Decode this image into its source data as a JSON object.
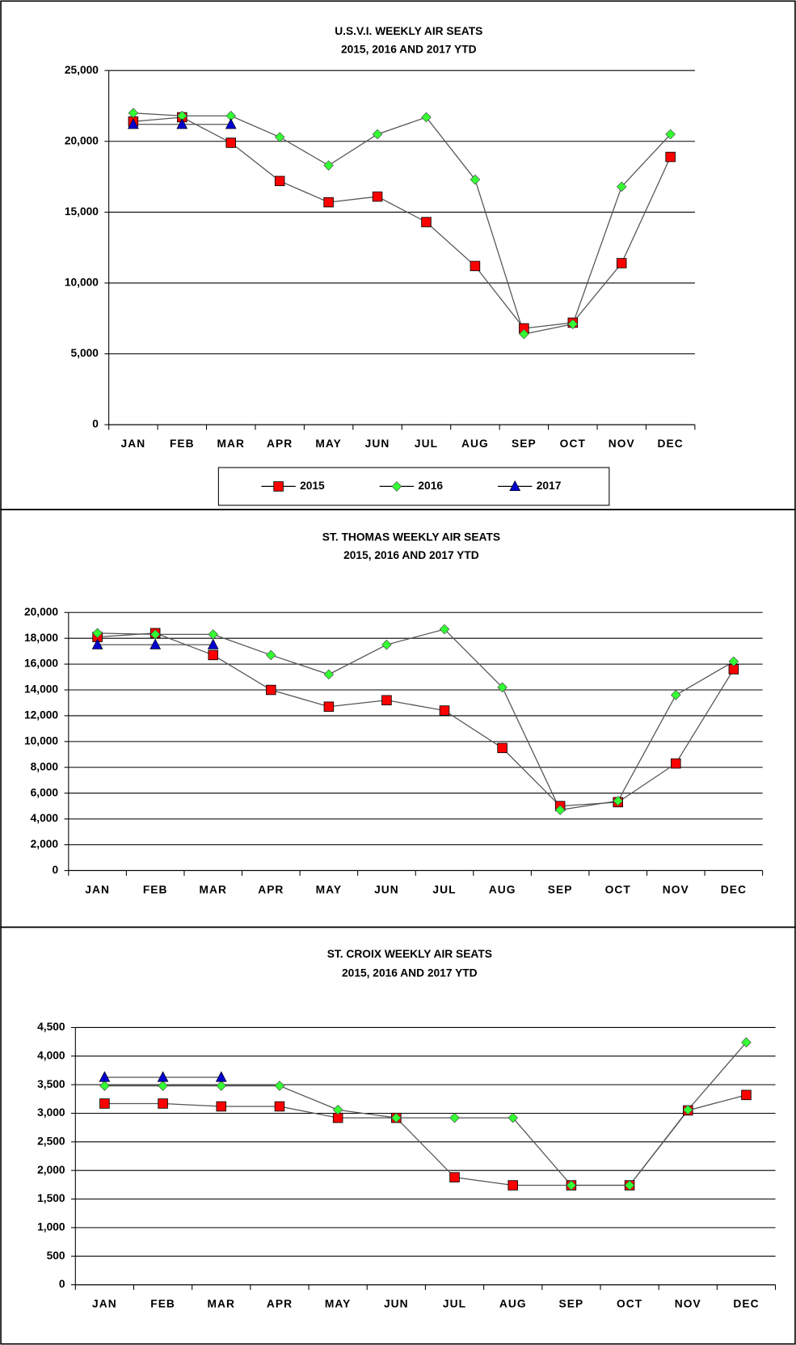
{
  "chart_data": [
    {
      "type": "line",
      "title": "U.S.V.I. WEEKLY  AIR SEATS",
      "subtitle": "2015, 2016 AND  2017 YTD",
      "categories": [
        "JAN",
        "FEB",
        "MAR",
        "APR",
        "MAY",
        "JUN",
        "JUL",
        "AUG",
        "SEP",
        "OCT",
        "NOV",
        "DEC"
      ],
      "ylim": [
        0,
        25000
      ],
      "yticks": [
        0,
        {
          "value": 5000,
          "label": "5,000"
        },
        {
          "value": 10000,
          "label": "10,000"
        },
        {
          "value": 15000,
          "label": "15,000"
        },
        {
          "value": 20000,
          "label": "20,000"
        },
        {
          "value": 25000,
          "label": "25,000"
        }
      ],
      "grid": true,
      "legend": "bottom",
      "series": [
        {
          "name": "2015",
          "color": "#ff0000",
          "marker": "square",
          "values": [
            21400,
            21700,
            19900,
            17200,
            15700,
            16100,
            14300,
            11200,
            6800,
            7200,
            11400,
            18900
          ]
        },
        {
          "name": "2016",
          "color": "#33ff33",
          "marker": "diamond",
          "values": [
            22000,
            21800,
            21800,
            20300,
            18300,
            20500,
            21700,
            17300,
            6400,
            7100,
            16800,
            20500
          ]
        },
        {
          "name": "2017",
          "color": "#0000cc",
          "marker": "triangle",
          "values": [
            21200,
            21200,
            21200,
            null,
            null,
            null,
            null,
            null,
            null,
            null,
            null,
            null
          ]
        }
      ]
    },
    {
      "type": "line",
      "title": "ST. THOMAS WEEKLY  AIR SEATS",
      "subtitle": "2015, 2016 AND  2017 YTD",
      "categories": [
        "JAN",
        "FEB",
        "MAR",
        "APR",
        "MAY",
        "JUN",
        "JUL",
        "AUG",
        "SEP",
        "OCT",
        "NOV",
        "DEC"
      ],
      "ylim": [
        0,
        20000
      ],
      "yticks": [
        0,
        {
          "value": 2000,
          "label": "2,000"
        },
        {
          "value": 4000,
          "label": "4,000"
        },
        {
          "value": 6000,
          "label": "6,000"
        },
        {
          "value": 8000,
          "label": "8,000"
        },
        {
          "value": 10000,
          "label": "10,000"
        },
        {
          "value": 12000,
          "label": "12,000"
        },
        {
          "value": 14000,
          "label": "14,000"
        },
        {
          "value": 16000,
          "label": "16,000"
        },
        {
          "value": 18000,
          "label": "18,000"
        },
        {
          "value": 20000,
          "label": "20,000"
        }
      ],
      "grid": true,
      "series": [
        {
          "name": "2015",
          "color": "#ff0000",
          "marker": "square",
          "values": [
            18100,
            18400,
            16700,
            14000,
            12700,
            13200,
            12400,
            9500,
            5000,
            5300,
            8300,
            15600
          ]
        },
        {
          "name": "2016",
          "color": "#33ff33",
          "marker": "diamond",
          "values": [
            18400,
            18300,
            18300,
            16700,
            15200,
            17500,
            18700,
            14200,
            4700,
            5400,
            13600,
            16200
          ]
        },
        {
          "name": "2017",
          "color": "#0000cc",
          "marker": "triangle",
          "values": [
            17500,
            17500,
            17500,
            null,
            null,
            null,
            null,
            null,
            null,
            null,
            null,
            null
          ]
        }
      ]
    },
    {
      "type": "line",
      "title": "ST. CROIX WEEKLY  AIR SEATS",
      "subtitle": "2015, 2016 AND  2017 YTD",
      "categories": [
        "JAN",
        "FEB",
        "MAR",
        "APR",
        "MAY",
        "JUN",
        "JUL",
        "AUG",
        "SEP",
        "OCT",
        "NOV",
        "DEC"
      ],
      "ylim": [
        0,
        4500
      ],
      "yticks": [
        0,
        500,
        {
          "value": 1000,
          "label": "1,000"
        },
        {
          "value": 1500,
          "label": "1,500"
        },
        {
          "value": 2000,
          "label": "2,000"
        },
        {
          "value": 2500,
          "label": "2,500"
        },
        {
          "value": 3000,
          "label": "3,000"
        },
        {
          "value": 3500,
          "label": "3,500"
        },
        {
          "value": 4000,
          "label": "4,000"
        },
        {
          "value": 4500,
          "label": "4,500"
        }
      ],
      "grid": true,
      "series": [
        {
          "name": "2015",
          "color": "#ff0000",
          "marker": "square",
          "values": [
            3170,
            3170,
            3120,
            3120,
            2920,
            2920,
            1880,
            1740,
            1740,
            1740,
            3050,
            3320
          ]
        },
        {
          "name": "2016",
          "color": "#33ff33",
          "marker": "diamond",
          "values": [
            3480,
            3480,
            3480,
            3480,
            3060,
            2920,
            2920,
            2920,
            1740,
            1740,
            3060,
            4240
          ]
        },
        {
          "name": "2017",
          "color": "#0000cc",
          "marker": "triangle",
          "values": [
            3630,
            3630,
            3630,
            null,
            null,
            null,
            null,
            null,
            null,
            null,
            null,
            null
          ]
        }
      ]
    }
  ]
}
